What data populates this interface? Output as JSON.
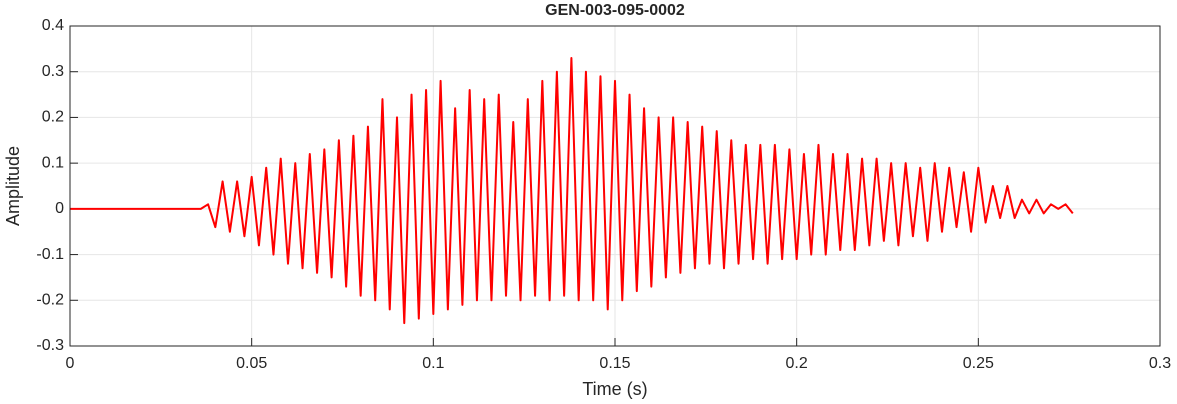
{
  "chart_data": {
    "type": "line",
    "title": "GEN-003-095-0002",
    "x_label": "Time (s)",
    "y_label": "Amplitude",
    "color": "#ff0000",
    "grid": true,
    "xlim": [
      0,
      0.3
    ],
    "xticks": [
      0,
      0.05,
      0.1,
      0.15,
      0.2,
      0.25,
      0.3
    ],
    "ylim": [
      -0.3,
      0.4
    ],
    "yticks": [
      -0.3,
      -0.2,
      -0.1,
      0,
      0.1,
      0.2,
      0.3,
      0.4
    ],
    "x": [
      0,
      0.002,
      0.004,
      0.006,
      0.008,
      0.01,
      0.012,
      0.014,
      0.016,
      0.018,
      0.02,
      0.022,
      0.024,
      0.026,
      0.028,
      0.03,
      0.032,
      0.034,
      0.036,
      0.038,
      0.04,
      0.042,
      0.044,
      0.046,
      0.048,
      0.05,
      0.052,
      0.054,
      0.056,
      0.058,
      0.06,
      0.062,
      0.064,
      0.066,
      0.068,
      0.07,
      0.072,
      0.074,
      0.076,
      0.078,
      0.08,
      0.082,
      0.084,
      0.086,
      0.088,
      0.09,
      0.092,
      0.094,
      0.096,
      0.098,
      0.1,
      0.102,
      0.104,
      0.106,
      0.108,
      0.11,
      0.112,
      0.114,
      0.116,
      0.118,
      0.12,
      0.122,
      0.124,
      0.126,
      0.128,
      0.13,
      0.132,
      0.134,
      0.136,
      0.138,
      0.14,
      0.142,
      0.144,
      0.146,
      0.148,
      0.15,
      0.152,
      0.154,
      0.156,
      0.158,
      0.16,
      0.162,
      0.164,
      0.166,
      0.168,
      0.17,
      0.172,
      0.174,
      0.176,
      0.178,
      0.18,
      0.182,
      0.184,
      0.186,
      0.188,
      0.19,
      0.192,
      0.194,
      0.196,
      0.198,
      0.2,
      0.202,
      0.204,
      0.206,
      0.208,
      0.21,
      0.212,
      0.214,
      0.216,
      0.218,
      0.22,
      0.222,
      0.224,
      0.226,
      0.228,
      0.23,
      0.232,
      0.234,
      0.236,
      0.238,
      0.24,
      0.242,
      0.244,
      0.246,
      0.248,
      0.25,
      0.252,
      0.254,
      0.256,
      0.258,
      0.26,
      0.262,
      0.264,
      0.266,
      0.268,
      0.27,
      0.272,
      0.274,
      0.276
    ],
    "values": [
      0,
      0,
      0,
      0,
      0,
      0,
      0,
      0,
      0,
      0,
      0,
      0,
      0,
      0,
      0,
      0,
      0,
      0,
      0,
      0.01,
      -0.04,
      0.06,
      -0.05,
      0.06,
      -0.06,
      0.07,
      -0.08,
      0.09,
      -0.1,
      0.11,
      -0.12,
      0.1,
      -0.13,
      0.12,
      -0.14,
      0.13,
      -0.15,
      0.15,
      -0.17,
      0.16,
      -0.19,
      0.18,
      -0.2,
      0.24,
      -0.22,
      0.2,
      -0.25,
      0.25,
      -0.24,
      0.26,
      -0.23,
      0.28,
      -0.22,
      0.22,
      -0.21,
      0.26,
      -0.2,
      0.24,
      -0.2,
      0.25,
      -0.19,
      0.19,
      -0.2,
      0.24,
      -0.19,
      0.28,
      -0.2,
      0.3,
      -0.19,
      0.33,
      -0.2,
      0.3,
      -0.2,
      0.29,
      -0.22,
      0.28,
      -0.2,
      0.25,
      -0.18,
      0.22,
      -0.17,
      0.2,
      -0.15,
      0.2,
      -0.14,
      0.19,
      -0.13,
      0.18,
      -0.12,
      0.17,
      -0.13,
      0.15,
      -0.12,
      0.14,
      -0.11,
      0.14,
      -0.12,
      0.14,
      -0.11,
      0.13,
      -0.11,
      0.12,
      -0.1,
      0.14,
      -0.1,
      0.12,
      -0.09,
      0.12,
      -0.09,
      0.11,
      -0.08,
      0.11,
      -0.07,
      0.1,
      -0.08,
      0.1,
      -0.06,
      0.09,
      -0.07,
      0.1,
      -0.05,
      0.09,
      -0.04,
      0.08,
      -0.05,
      0.09,
      -0.03,
      0.05,
      -0.02,
      0.05,
      -0.02,
      0.02,
      -0.01,
      0.02,
      -0.01,
      0.01,
      0,
      0.01,
      -0.01
    ]
  }
}
